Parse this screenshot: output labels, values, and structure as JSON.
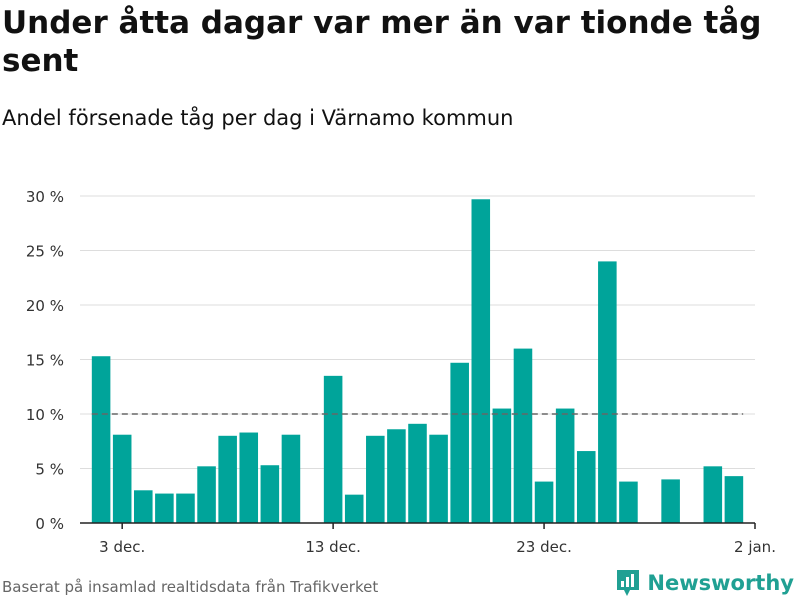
{
  "header": {
    "title": "Under åtta dagar var mer än var tionde tåg sent",
    "subtitle": "Andel försenade tåg per dag i Värnamo kommun"
  },
  "footer": {
    "source": "Baserat på insamlad realtidsdata från Trafikverket",
    "brand": "Newsworthy"
  },
  "colors": {
    "bar": "#00a49a",
    "brand": "#20a093",
    "reference_line": "#666666",
    "grid": "#dddddd",
    "axis": "#222222"
  },
  "icons": {
    "brand_logo": "newsworthy-chart-bubble-icon"
  },
  "chart_data": {
    "type": "bar",
    "x_type": "date",
    "dates": [
      "2023-12-02",
      "2023-12-03",
      "2023-12-04",
      "2023-12-05",
      "2023-12-06",
      "2023-12-07",
      "2023-12-08",
      "2023-12-09",
      "2023-12-10",
      "2023-12-11",
      "2023-12-12",
      "2023-12-13",
      "2023-12-14",
      "2023-12-15",
      "2023-12-16",
      "2023-12-17",
      "2023-12-18",
      "2023-12-19",
      "2023-12-20",
      "2023-12-21",
      "2023-12-22",
      "2023-12-23",
      "2023-12-24",
      "2023-12-25",
      "2023-12-26",
      "2023-12-27",
      "2023-12-28",
      "2023-12-29",
      "2023-12-30",
      "2023-12-31",
      "2024-01-01"
    ],
    "values": [
      15.3,
      8.1,
      3.0,
      2.7,
      2.7,
      5.2,
      8.0,
      8.3,
      5.3,
      8.1,
      null,
      13.5,
      2.6,
      8.0,
      8.6,
      9.1,
      8.1,
      14.7,
      29.7,
      10.5,
      16.0,
      3.8,
      10.5,
      6.6,
      24.0,
      3.8,
      null,
      4.0,
      null,
      5.2,
      4.3
    ],
    "reference_line": {
      "value": 10
    },
    "ylim": [
      0,
      30
    ],
    "yticks": [
      0,
      5,
      10,
      15,
      20,
      25,
      30
    ],
    "ytick_labels": [
      "0 %",
      "5 %",
      "10 %",
      "15 %",
      "20 %",
      "25 %",
      "30 %"
    ],
    "xticks": [
      "2023-12-03",
      "2023-12-13",
      "2023-12-23",
      "2024-01-02"
    ],
    "xtick_labels": [
      "3 dec.",
      "13 dec.",
      "23 dec.",
      "2 jan."
    ],
    "xlim": [
      "2023-12-01",
      "2024-01-02"
    ],
    "grid": true,
    "xlabel": "",
    "ylabel": ""
  }
}
